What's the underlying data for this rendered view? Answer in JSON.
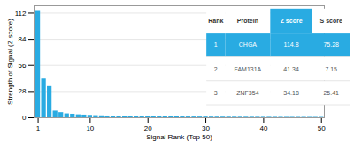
{
  "chart_data": {
    "type": "bar",
    "xlabel": "Signal Rank (Top 50)",
    "ylabel": "Strength of Signal (Z score)",
    "x": [
      1,
      2,
      3,
      4,
      5,
      6,
      7,
      8,
      9,
      10,
      11,
      12,
      13,
      14,
      15,
      16,
      17,
      18,
      19,
      20,
      21,
      22,
      23,
      24,
      25,
      26,
      27,
      28,
      29,
      30,
      31,
      32,
      33,
      34,
      35,
      36,
      37,
      38,
      39,
      40,
      41,
      42,
      43,
      44,
      45,
      46,
      47,
      48,
      49,
      50
    ],
    "values": [
      114.8,
      41.34,
      34.18,
      7.15,
      5.5,
      4.2,
      3.8,
      3.2,
      2.9,
      2.6,
      2.3,
      2.1,
      1.9,
      1.8,
      1.6,
      1.5,
      1.4,
      1.3,
      1.25,
      1.2,
      1.15,
      1.1,
      1.05,
      1.0,
      0.95,
      0.9,
      0.87,
      0.84,
      0.81,
      0.78,
      0.75,
      0.73,
      0.71,
      0.69,
      0.67,
      0.65,
      0.63,
      0.61,
      0.59,
      0.57,
      0.55,
      0.53,
      0.51,
      0.5,
      0.49,
      0.48,
      0.47,
      0.46,
      0.45,
      0.44
    ],
    "color": "#29ABE2",
    "xlim": [
      0.3,
      50.5
    ],
    "ylim": [
      0,
      120
    ],
    "xticks": [
      1,
      10,
      20,
      30,
      40,
      50
    ],
    "yticks": [
      0,
      28,
      56,
      84,
      112
    ],
    "grid": true,
    "table": {
      "headers": [
        "Rank",
        "Protein",
        "Z score",
        "S score"
      ],
      "rows": [
        [
          "1",
          "CHGA",
          "114.8",
          "75.28"
        ],
        [
          "2",
          "FAM131A",
          "41.34",
          "7.15"
        ],
        [
          "3",
          "ZNF354",
          "34.18",
          "25.41"
        ]
      ]
    }
  }
}
